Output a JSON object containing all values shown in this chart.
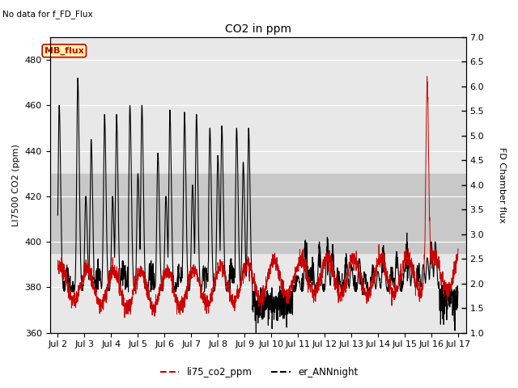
{
  "title": "CO2 in ppm",
  "subtitle": "No data for f_FD_Flux",
  "ylabel_left": "LI7500 CO2 (ppm)",
  "ylabel_right": "FD Chamber flux",
  "ylim_left": [
    360,
    490
  ],
  "ylim_right": [
    1.0,
    7.0
  ],
  "yticks_left": [
    360,
    380,
    400,
    420,
    440,
    460,
    480
  ],
  "yticks_right": [
    1.0,
    1.5,
    2.0,
    2.5,
    3.0,
    3.5,
    4.0,
    4.5,
    5.0,
    5.5,
    6.0,
    6.5,
    7.0
  ],
  "xtick_labels": [
    "Jul 2",
    "Jul 3",
    "Jul 4",
    "Jul 5",
    "Jul 6",
    "Jul 7",
    "Jul 8",
    "Jul 9",
    "Jul 10",
    "Jul 11",
    "Jul 12",
    "Jul 13",
    "Jul 14",
    "Jul 15",
    "Jul 16",
    "Jul 17"
  ],
  "xtick_positions": [
    1,
    2,
    3,
    4,
    5,
    6,
    7,
    8,
    9,
    10,
    11,
    12,
    13,
    14,
    15,
    16
  ],
  "shaded_low": 395,
  "shaded_high": 430,
  "shaded_color": "#c8c8c8",
  "bg_color": "#e8e8e8",
  "line1_color": "#cc0000",
  "line2_color": "#000000",
  "legend1_label": "li75_co2_ppm",
  "legend2_label": "er_ANNnight",
  "mb_flux_label": "MB_flux",
  "mb_flux_color": "#cc0000",
  "mb_flux_bg": "#ffffaa",
  "mb_flux_border": "#cc0000",
  "fig_width": 6.4,
  "fig_height": 4.8,
  "dpi": 100
}
